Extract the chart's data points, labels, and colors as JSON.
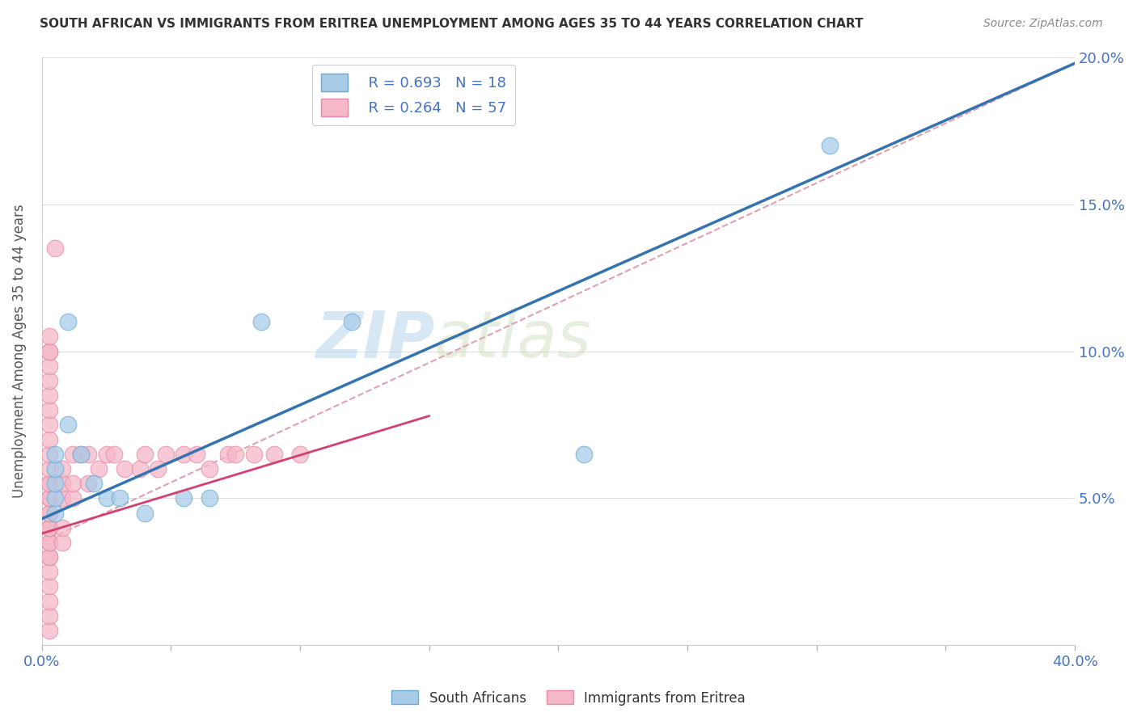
{
  "title": "SOUTH AFRICAN VS IMMIGRANTS FROM ERITREA UNEMPLOYMENT AMONG AGES 35 TO 44 YEARS CORRELATION CHART",
  "source": "Source: ZipAtlas.com",
  "ylabel": "Unemployment Among Ages 35 to 44 years",
  "xlim": [
    0.0,
    0.4
  ],
  "ylim": [
    0.0,
    0.2
  ],
  "xticks": [
    0.0,
    0.05,
    0.1,
    0.15,
    0.2,
    0.25,
    0.3,
    0.35,
    0.4
  ],
  "yticks": [
    0.0,
    0.05,
    0.1,
    0.15,
    0.2
  ],
  "legend_r1": "R = 0.693",
  "legend_n1": "N = 18",
  "legend_r2": "R = 0.264",
  "legend_n2": "N = 57",
  "color_blue": "#a8cce8",
  "color_pink": "#f4b8c8",
  "color_blue_edge": "#6aaad4",
  "color_pink_edge": "#e888a8",
  "color_blue_line": "#3572b0",
  "color_pink_line": "#d44070",
  "color_dashed": "#e0a0b0",
  "watermark_zip": "ZIP",
  "watermark_atlas": "atlas",
  "background_color": "#ffffff",
  "grid_color": "#e0e0e0",
  "blue_x": [
    0.005,
    0.005,
    0.005,
    0.005,
    0.005,
    0.01,
    0.01,
    0.015,
    0.02,
    0.025,
    0.03,
    0.04,
    0.055,
    0.065,
    0.085,
    0.12,
    0.21,
    0.305
  ],
  "blue_y": [
    0.045,
    0.05,
    0.055,
    0.06,
    0.065,
    0.075,
    0.11,
    0.065,
    0.055,
    0.05,
    0.05,
    0.045,
    0.05,
    0.05,
    0.11,
    0.11,
    0.065,
    0.17
  ],
  "pink_x": [
    0.003,
    0.003,
    0.003,
    0.003,
    0.003,
    0.003,
    0.003,
    0.003,
    0.003,
    0.003,
    0.003,
    0.003,
    0.003,
    0.003,
    0.003,
    0.003,
    0.003,
    0.003,
    0.003,
    0.003,
    0.003,
    0.003,
    0.003,
    0.003,
    0.003,
    0.003,
    0.003,
    0.003,
    0.003,
    0.008,
    0.008,
    0.008,
    0.008,
    0.008,
    0.012,
    0.012,
    0.012,
    0.015,
    0.018,
    0.018,
    0.022,
    0.025,
    0.028,
    0.032,
    0.038,
    0.04,
    0.045,
    0.048,
    0.055,
    0.06,
    0.065,
    0.072,
    0.075,
    0.082,
    0.09,
    0.1,
    0.005
  ],
  "pink_y": [
    0.005,
    0.01,
    0.015,
    0.02,
    0.025,
    0.03,
    0.03,
    0.035,
    0.035,
    0.04,
    0.04,
    0.04,
    0.045,
    0.045,
    0.05,
    0.05,
    0.055,
    0.055,
    0.06,
    0.065,
    0.07,
    0.075,
    0.08,
    0.085,
    0.09,
    0.095,
    0.1,
    0.1,
    0.105,
    0.035,
    0.04,
    0.05,
    0.055,
    0.06,
    0.05,
    0.055,
    0.065,
    0.065,
    0.055,
    0.065,
    0.06,
    0.065,
    0.065,
    0.06,
    0.06,
    0.065,
    0.06,
    0.065,
    0.065,
    0.065,
    0.06,
    0.065,
    0.065,
    0.065,
    0.065,
    0.065,
    0.135
  ],
  "blue_line_x0": 0.0,
  "blue_line_y0": 0.043,
  "blue_line_x1": 0.4,
  "blue_line_y1": 0.198,
  "pink_line_x0": 0.0,
  "pink_line_y0": 0.038,
  "pink_line_x1": 0.15,
  "pink_line_y1": 0.078,
  "dashed_line_x0": 0.0,
  "dashed_line_y0": 0.035,
  "dashed_line_x1": 0.4,
  "dashed_line_y1": 0.198
}
